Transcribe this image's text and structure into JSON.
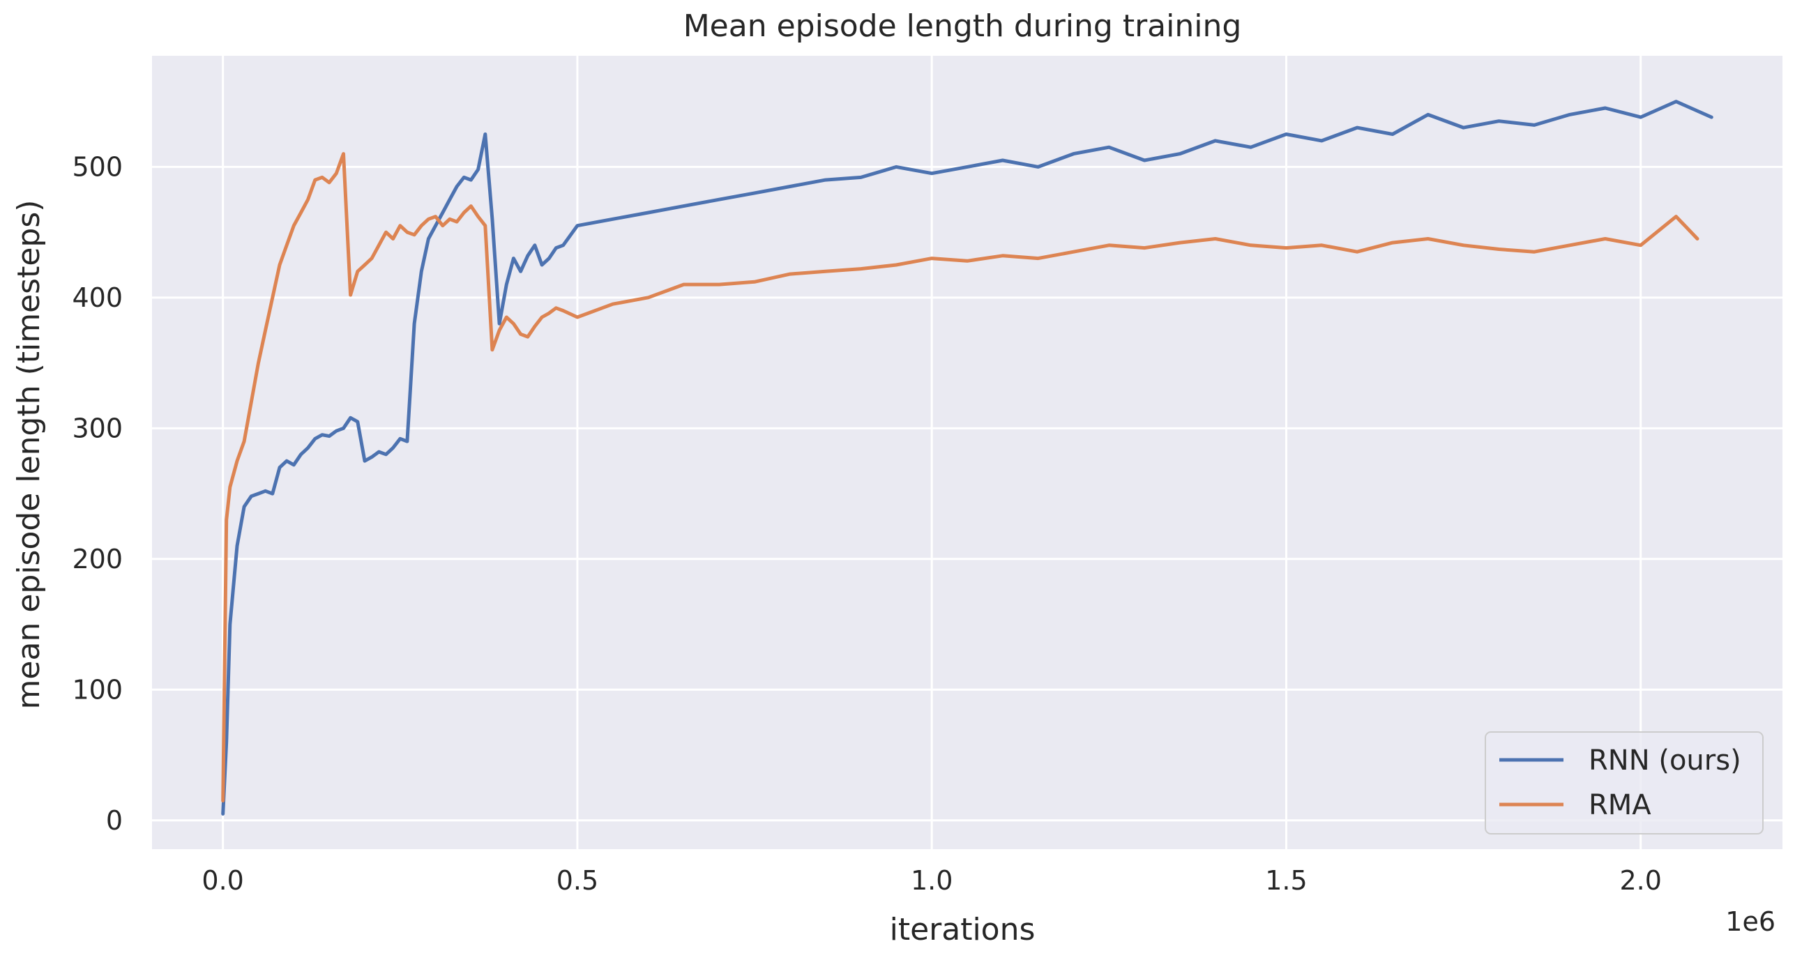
{
  "chart_data": {
    "type": "line",
    "title": "Mean episode length during training",
    "xlabel": "iterations",
    "ylabel": "mean episode length (timesteps)",
    "x_offset_label": "1e6",
    "xlim": [
      -0.1,
      2.2
    ],
    "ylim": [
      -22,
      585
    ],
    "xticks": [
      0.0,
      0.5,
      1.0,
      1.5,
      2.0
    ],
    "xtick_labels": [
      "0.0",
      "0.5",
      "1.0",
      "1.5",
      "2.0"
    ],
    "yticks": [
      0,
      100,
      200,
      300,
      400,
      500
    ],
    "ytick_labels": [
      "0",
      "100",
      "200",
      "300",
      "400",
      "500"
    ],
    "grid": true,
    "legend_position": "bottom-right",
    "colors": {
      "background": "#eaeaf2",
      "grid": "#ffffff",
      "rnn": "#4c72b0",
      "rma": "#dd8452"
    },
    "series": [
      {
        "name": "RNN (ours)",
        "color": "#4c72b0",
        "x": [
          0.0,
          0.005,
          0.01,
          0.02,
          0.03,
          0.04,
          0.05,
          0.06,
          0.07,
          0.08,
          0.09,
          0.1,
          0.11,
          0.12,
          0.13,
          0.14,
          0.15,
          0.16,
          0.17,
          0.18,
          0.19,
          0.2,
          0.21,
          0.22,
          0.23,
          0.24,
          0.25,
          0.26,
          0.27,
          0.28,
          0.29,
          0.3,
          0.31,
          0.32,
          0.33,
          0.34,
          0.35,
          0.36,
          0.37,
          0.38,
          0.39,
          0.4,
          0.41,
          0.42,
          0.43,
          0.44,
          0.45,
          0.46,
          0.47,
          0.48,
          0.5,
          0.55,
          0.6,
          0.65,
          0.7,
          0.75,
          0.8,
          0.85,
          0.9,
          0.95,
          1.0,
          1.05,
          1.1,
          1.15,
          1.2,
          1.25,
          1.3,
          1.35,
          1.4,
          1.45,
          1.5,
          1.55,
          1.6,
          1.65,
          1.7,
          1.75,
          1.8,
          1.85,
          1.9,
          1.95,
          2.0,
          2.05,
          2.1
        ],
        "y": [
          5,
          60,
          150,
          210,
          240,
          248,
          250,
          252,
          250,
          270,
          275,
          272,
          280,
          285,
          292,
          295,
          294,
          298,
          300,
          308,
          305,
          275,
          278,
          282,
          280,
          285,
          292,
          290,
          380,
          420,
          445,
          455,
          465,
          475,
          485,
          492,
          490,
          498,
          525,
          460,
          380,
          410,
          430,
          420,
          432,
          440,
          425,
          430,
          438,
          440,
          455,
          460,
          465,
          470,
          475,
          480,
          485,
          490,
          492,
          500,
          495,
          500,
          505,
          500,
          510,
          515,
          505,
          510,
          520,
          515,
          525,
          520,
          530,
          525,
          540,
          530,
          535,
          532,
          540,
          545,
          538,
          550,
          538
        ]
      },
      {
        "name": "RMA",
        "color": "#dd8452",
        "x": [
          0.0,
          0.005,
          0.01,
          0.02,
          0.03,
          0.04,
          0.05,
          0.06,
          0.07,
          0.08,
          0.09,
          0.1,
          0.11,
          0.12,
          0.13,
          0.14,
          0.15,
          0.16,
          0.17,
          0.18,
          0.19,
          0.2,
          0.21,
          0.22,
          0.23,
          0.24,
          0.25,
          0.26,
          0.27,
          0.28,
          0.29,
          0.3,
          0.31,
          0.32,
          0.33,
          0.34,
          0.35,
          0.36,
          0.37,
          0.38,
          0.39,
          0.4,
          0.41,
          0.42,
          0.43,
          0.44,
          0.45,
          0.46,
          0.47,
          0.48,
          0.5,
          0.55,
          0.6,
          0.65,
          0.7,
          0.75,
          0.8,
          0.85,
          0.9,
          0.95,
          1.0,
          1.05,
          1.1,
          1.15,
          1.2,
          1.25,
          1.3,
          1.35,
          1.4,
          1.45,
          1.5,
          1.55,
          1.6,
          1.65,
          1.7,
          1.75,
          1.8,
          1.85,
          1.9,
          1.95,
          2.0,
          2.05,
          2.08
        ],
        "y": [
          15,
          230,
          255,
          275,
          290,
          320,
          350,
          375,
          400,
          425,
          440,
          455,
          465,
          475,
          490,
          492,
          488,
          495,
          510,
          402,
          420,
          425,
          430,
          440,
          450,
          445,
          455,
          450,
          448,
          455,
          460,
          462,
          455,
          460,
          458,
          465,
          470,
          462,
          455,
          360,
          375,
          385,
          380,
          372,
          370,
          378,
          385,
          388,
          392,
          390,
          385,
          395,
          400,
          410,
          410,
          412,
          418,
          420,
          422,
          425,
          430,
          428,
          432,
          430,
          435,
          440,
          438,
          442,
          445,
          440,
          438,
          440,
          435,
          442,
          445,
          440,
          437,
          435,
          440,
          445,
          440,
          462,
          445
        ]
      }
    ]
  }
}
